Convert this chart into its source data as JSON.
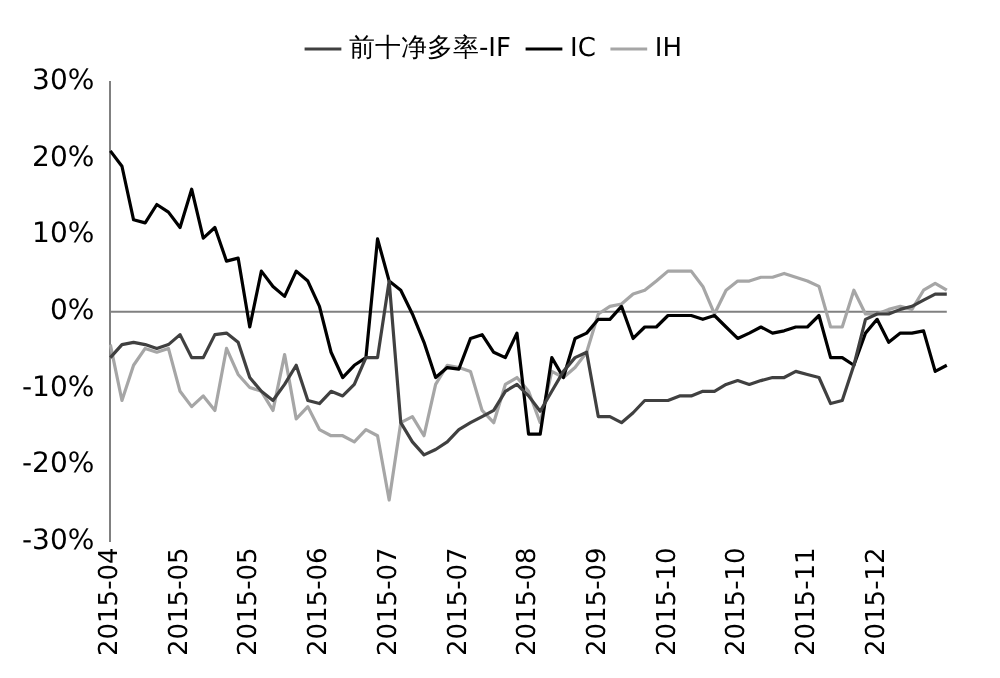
{
  "chart_data": {
    "type": "line",
    "categories": [
      "2015-04",
      null,
      null,
      null,
      null,
      null,
      "2015-05",
      null,
      null,
      null,
      null,
      null,
      "2015-05",
      null,
      null,
      null,
      null,
      null,
      "2015-06",
      null,
      null,
      null,
      null,
      null,
      "2015-07",
      null,
      null,
      null,
      null,
      null,
      "2015-07",
      null,
      null,
      null,
      null,
      null,
      "2015-08",
      null,
      null,
      null,
      null,
      null,
      "2015-09",
      null,
      null,
      null,
      null,
      null,
      "2015-10",
      null,
      null,
      null,
      null,
      null,
      "2015-10",
      null,
      null,
      null,
      null,
      null,
      "2015-11",
      null,
      null,
      null,
      null,
      null,
      "2015-12",
      null,
      null,
      null,
      null,
      null,
      null
    ],
    "series": [
      {
        "name": "前十净多率-IF",
        "color": "#404040",
        "values": [
          -6,
          -4.3,
          -4,
          -4.3,
          -4.8,
          -4.3,
          -3,
          -6,
          -6,
          -3,
          -2.8,
          -4,
          -8.6,
          -10.4,
          -11.6,
          -9.5,
          -7,
          -11.6,
          -12,
          -10.4,
          -11,
          -9.5,
          -6,
          -6,
          4,
          -14.5,
          -17,
          -18.7,
          -18,
          -17,
          -15.4,
          -14.5,
          -13.7,
          -12.9,
          -10.4,
          -9.5,
          -11,
          -13,
          -10.4,
          -7.8,
          -6,
          -5.3,
          -13.7,
          -13.7,
          -14.5,
          -13.2,
          -11.6,
          -11.6,
          -11.6,
          -11,
          -11,
          -10.4,
          -10.4,
          -9.5,
          -9,
          -9.5,
          -9,
          -8.6,
          -8.6,
          -7.8,
          -8.2,
          -8.6,
          -12,
          -11.6,
          -7,
          -1,
          -0.3,
          -0.3,
          0.3,
          0.7,
          1.5,
          2.3,
          2.3
        ]
      },
      {
        "name": "IC",
        "color": "#000000",
        "values": [
          21,
          19,
          12,
          11.6,
          14,
          13,
          11,
          16,
          9.6,
          11,
          6.6,
          7,
          -2,
          5.3,
          3.3,
          2,
          5.3,
          4,
          0.7,
          -5.3,
          -8.6,
          -7,
          -6,
          9.5,
          4,
          2.8,
          -0.3,
          -4,
          -8.6,
          -7.3,
          -7.5,
          -3.5,
          -3,
          -5.3,
          -6,
          -2.8,
          -16,
          -16,
          -6,
          -8.6,
          -3.5,
          -2.8,
          -1,
          -1,
          0.7,
          -3.5,
          -2,
          -2,
          -0.5,
          -0.5,
          -0.5,
          -1,
          -0.5,
          -2,
          -3.5,
          -2.8,
          -2,
          -2.8,
          -2.5,
          -2,
          -2,
          -0.5,
          -6,
          -6,
          -7,
          -2.8,
          -1,
          -4,
          -2.8,
          -2.8,
          -2.5,
          -7.8,
          -7
        ]
      },
      {
        "name": "IH",
        "color": "#a6a6a6",
        "values": [
          -4.3,
          -11.6,
          -7,
          -4.8,
          -5.3,
          -4.8,
          -10.4,
          -12.4,
          -11,
          -12.9,
          -4.8,
          -8.2,
          -9.9,
          -10.4,
          -12.9,
          -5.6,
          -14,
          -12.4,
          -15.4,
          -16.2,
          -16.2,
          -17,
          -15.4,
          -16.2,
          -24.6,
          -14.5,
          -13.7,
          -16.2,
          -9.5,
          -7,
          -7.3,
          -7.8,
          -12.9,
          -14.5,
          -9.5,
          -8.6,
          -10.4,
          -14.5,
          -7.8,
          -8.6,
          -7.3,
          -5.3,
          -0.3,
          0.7,
          1,
          2.3,
          2.8,
          4,
          5.3,
          5.3,
          5.3,
          3.3,
          -0.3,
          2.8,
          4,
          4,
          4.5,
          4.5,
          5,
          4.5,
          4,
          3.3,
          -2,
          -2,
          2.8,
          -0.3,
          -0.3,
          0.3,
          0.7,
          0.3,
          2.8,
          3.7,
          2.8
        ]
      }
    ],
    "ylim": [
      -30,
      30
    ],
    "yticks": [
      {
        "value": -30,
        "label": "-30%"
      },
      {
        "value": -20,
        "label": "-20%"
      },
      {
        "value": -10,
        "label": "-10%"
      },
      {
        "value": 0,
        "label": "0%"
      },
      {
        "value": 10,
        "label": "10%"
      },
      {
        "value": 20,
        "label": "20%"
      },
      {
        "value": 30,
        "label": "30%"
      }
    ],
    "ref_lines": [
      {
        "axis": "y",
        "value": 0,
        "color": "#808080"
      }
    ],
    "grid": false,
    "legend": "top",
    "marker": "none",
    "line_style": "solid"
  }
}
